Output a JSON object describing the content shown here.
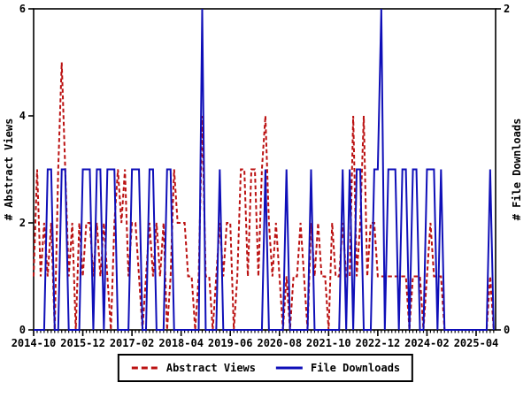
{
  "chart": {
    "left_axis": {
      "title": "# Abstract Views",
      "ticks": [
        0,
        2,
        4,
        6
      ],
      "min": 0,
      "max": 6
    },
    "right_axis": {
      "title": "# File Downloads",
      "ticks": [
        0,
        2
      ],
      "min": 0,
      "max": 2
    },
    "x_axis": {
      "tick_labels": [
        "2014-10",
        "2015-12",
        "2017-02",
        "2018-04",
        "2019-06",
        "2020-08",
        "2021-10",
        "2022-12",
        "2024-02",
        "2025-04"
      ],
      "tick_month_indices": [
        0,
        14,
        28,
        42,
        56,
        70,
        84,
        98,
        112,
        126
      ]
    },
    "legend": [
      {
        "label": "Abstract Views"
      },
      {
        "label": "File Downloads"
      }
    ],
    "colors": {
      "abstract_views": "#bb1111",
      "file_downloads": "#0f0fb8",
      "axis": "#000000"
    }
  },
  "chart_data": {
    "type": "line",
    "x_start": "2014-10",
    "x_step_months": 1,
    "x_months_total": 132,
    "grid": false,
    "legend_position": "bottom-center",
    "series": [
      {
        "name": "Abstract Views",
        "axis": "left",
        "style": "dashed",
        "color": "#bb1111",
        "ylim": [
          0,
          6
        ],
        "values": [
          1,
          3,
          1,
          2,
          1,
          2,
          0,
          3,
          5,
          3,
          1,
          2,
          0,
          2,
          1,
          2,
          2,
          1,
          2,
          1,
          2,
          1,
          0,
          2,
          3,
          2,
          3,
          1,
          2,
          2,
          1,
          0,
          1,
          2,
          1,
          2,
          1,
          2,
          0,
          1,
          3,
          2,
          2,
          2,
          1,
          1,
          0,
          1,
          4,
          1,
          1,
          0,
          1,
          2,
          1,
          2,
          2,
          0,
          1,
          3,
          3,
          1,
          3,
          3,
          1,
          3,
          4,
          2,
          1,
          2,
          1,
          0,
          1,
          0,
          1,
          1,
          2,
          1,
          0,
          2,
          1,
          2,
          1,
          1,
          0,
          2,
          1,
          1,
          2,
          1,
          1,
          4,
          1,
          2,
          4,
          1,
          2,
          2,
          1,
          1,
          1,
          1,
          1,
          1,
          1,
          1,
          1,
          0,
          1,
          1,
          1,
          0,
          1,
          2,
          1,
          1,
          1,
          0,
          0,
          0,
          0,
          0,
          0,
          0,
          0,
          0,
          0,
          0,
          0,
          0,
          1,
          0
        ]
      },
      {
        "name": "File Downloads",
        "axis": "right",
        "style": "solid",
        "color": "#0f0fb8",
        "ylim": [
          0,
          2
        ],
        "values": [
          0,
          0,
          0,
          0,
          1,
          1,
          0,
          0,
          1,
          1,
          0,
          0,
          0,
          0,
          1,
          1,
          1,
          0,
          1,
          1,
          0,
          1,
          1,
          1,
          0,
          0,
          0,
          0,
          1,
          1,
          1,
          0,
          0,
          1,
          1,
          0,
          0,
          0,
          1,
          1,
          0,
          0,
          0,
          0,
          0,
          0,
          0,
          0,
          2,
          0,
          0,
          0,
          0,
          1,
          0,
          0,
          0,
          0,
          0,
          0,
          0,
          0,
          0,
          0,
          0,
          0,
          1,
          0,
          0,
          0,
          0,
          0,
          1,
          0,
          0,
          0,
          0,
          0,
          0,
          1,
          0,
          0,
          0,
          0,
          0,
          0,
          0,
          0,
          1,
          0,
          1,
          0,
          1,
          1,
          0,
          0,
          0,
          1,
          1,
          2,
          0,
          1,
          1,
          1,
          0,
          1,
          1,
          0,
          1,
          1,
          0,
          0,
          1,
          1,
          1,
          0,
          1,
          0,
          0,
          0,
          0,
          0,
          0,
          0,
          0,
          0,
          0,
          0,
          0,
          0,
          1,
          0
        ]
      }
    ]
  }
}
